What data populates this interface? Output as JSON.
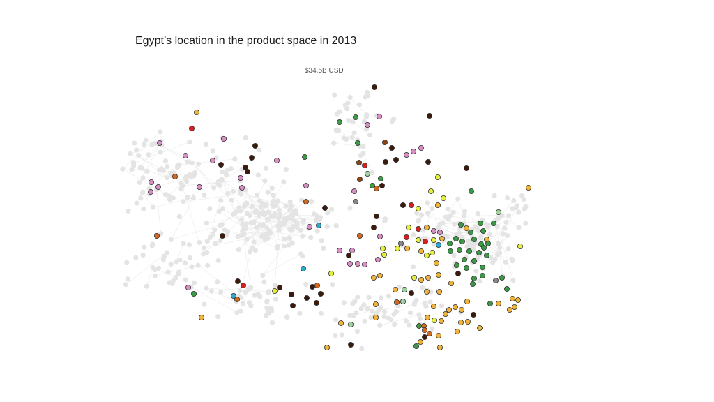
{
  "slide": {
    "title": "Egypt’s location in the product space in 2013",
    "total_value": "$34.5B USD"
  },
  "colors": {
    "background_node": "#e4e4e4",
    "background_edge": "#ececec",
    "node_stroke": "#333333",
    "dark_brown": "#3b1a0a",
    "brown": "#8b4513",
    "orange": "#d2691e",
    "yellow_orange": "#f0b43c",
    "yellow_green": "#e8f03c",
    "pink": "#d98fc4",
    "green": "#3a9a45",
    "light_green": "#9fd39f",
    "red": "#d62020",
    "teal": "#2eaad1",
    "gray": "#888888"
  },
  "legend": null
}
